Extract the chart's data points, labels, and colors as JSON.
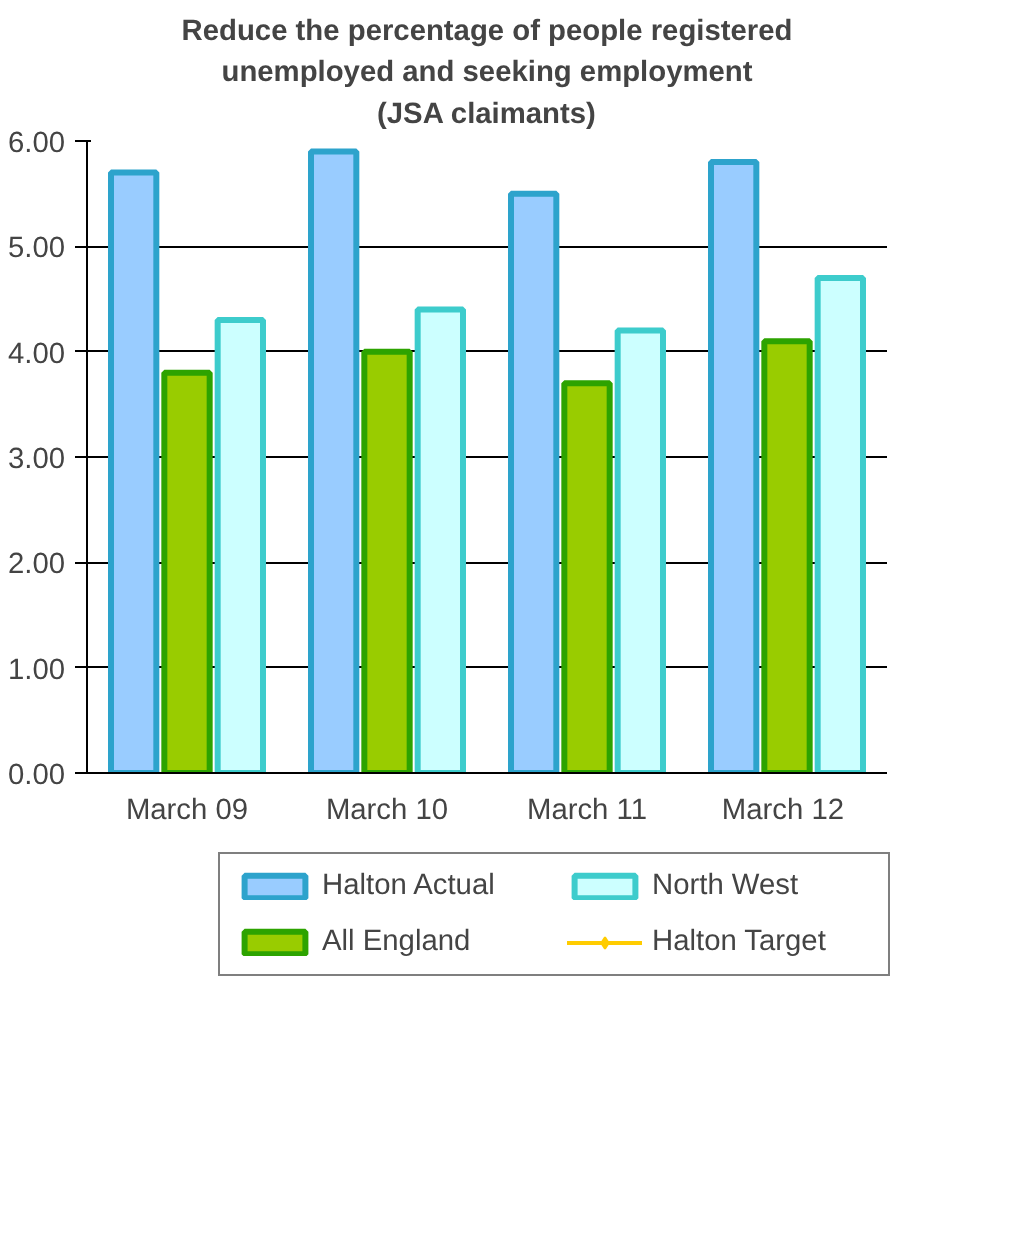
{
  "chart_data": {
    "type": "bar",
    "title": "Reduce the percentage of people registered\nunemployed and seeking employment\n(JSA claimants)",
    "categories": [
      "March 09",
      "March 10",
      "March 11",
      "March  12"
    ],
    "series": [
      {
        "name": "Halton Actual",
        "color": "#99ccff",
        "values": [
          5.7,
          5.9,
          5.5,
          5.8
        ]
      },
      {
        "name": "All England",
        "color": "#99cc00",
        "values": [
          3.8,
          4.0,
          3.7,
          4.1
        ]
      },
      {
        "name": "North West",
        "color": "#ccffff",
        "values": [
          4.3,
          4.4,
          4.2,
          4.7
        ]
      },
      {
        "name": "Halton Target",
        "type": "line",
        "color": "#ffcc00",
        "marker": "diamond",
        "values": [
          null,
          null,
          null,
          null
        ]
      }
    ],
    "ylim": [
      0,
      6
    ],
    "yticks": [
      {
        "value": 0,
        "label": "0.00"
      },
      {
        "value": 1,
        "label": "1.00"
      },
      {
        "value": 2,
        "label": "2.00"
      },
      {
        "value": 3,
        "label": "3.00"
      },
      {
        "value": 4,
        "label": "4.00"
      },
      {
        "value": 5,
        "label": "5.00"
      },
      {
        "value": 6,
        "label": "6.00"
      }
    ],
    "grid": "y",
    "legend": "bottom"
  }
}
